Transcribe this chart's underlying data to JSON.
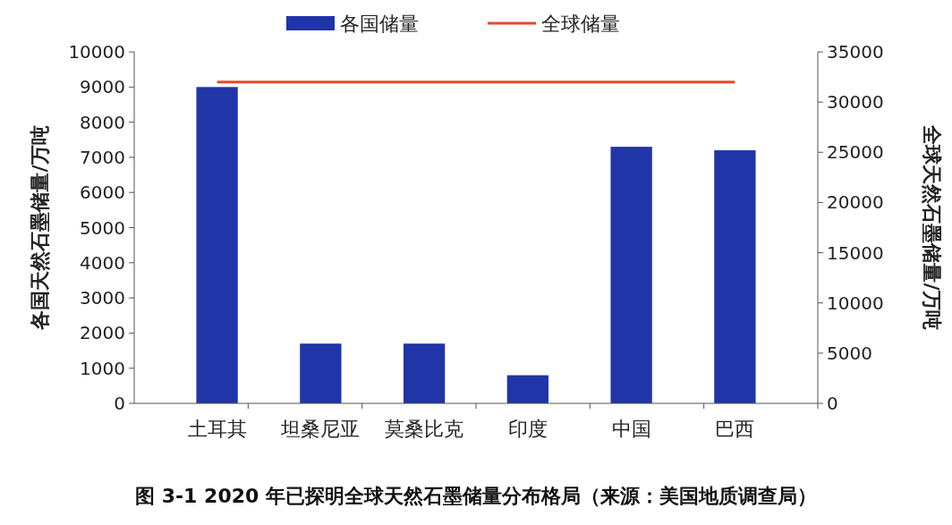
{
  "chart_data": {
    "type": "bar",
    "title": "图 3-1 2020 年已探明全球天然石墨储量分布格局（来源：美国地质调查局）",
    "categories": [
      "土耳其",
      "坦桑尼亚",
      "莫桑比克",
      "印度",
      "中国",
      "巴西"
    ],
    "series": [
      {
        "name": "各国储量",
        "color": "#1f35a8",
        "values": [
          9000,
          1700,
          1700,
          800,
          7300,
          7200
        ]
      },
      {
        "name": "全球储量",
        "type": "line",
        "axis": "y2",
        "color": "#e8482a",
        "values": [
          32000,
          32000,
          32000,
          32000,
          32000,
          32000
        ]
      }
    ],
    "ylabel": "各国天然石墨储量/万吨",
    "y2label": "全球天然石墨储量/万吨",
    "ylim": [
      0,
      10000
    ],
    "yticks": [
      0,
      1000,
      2000,
      3000,
      4000,
      5000,
      6000,
      7000,
      8000,
      9000,
      10000
    ],
    "y2lim": [
      0,
      35000
    ],
    "y2ticks": [
      0,
      5000,
      10000,
      15000,
      20000,
      25000,
      30000,
      35000
    ],
    "legend": "top",
    "grid": false
  }
}
